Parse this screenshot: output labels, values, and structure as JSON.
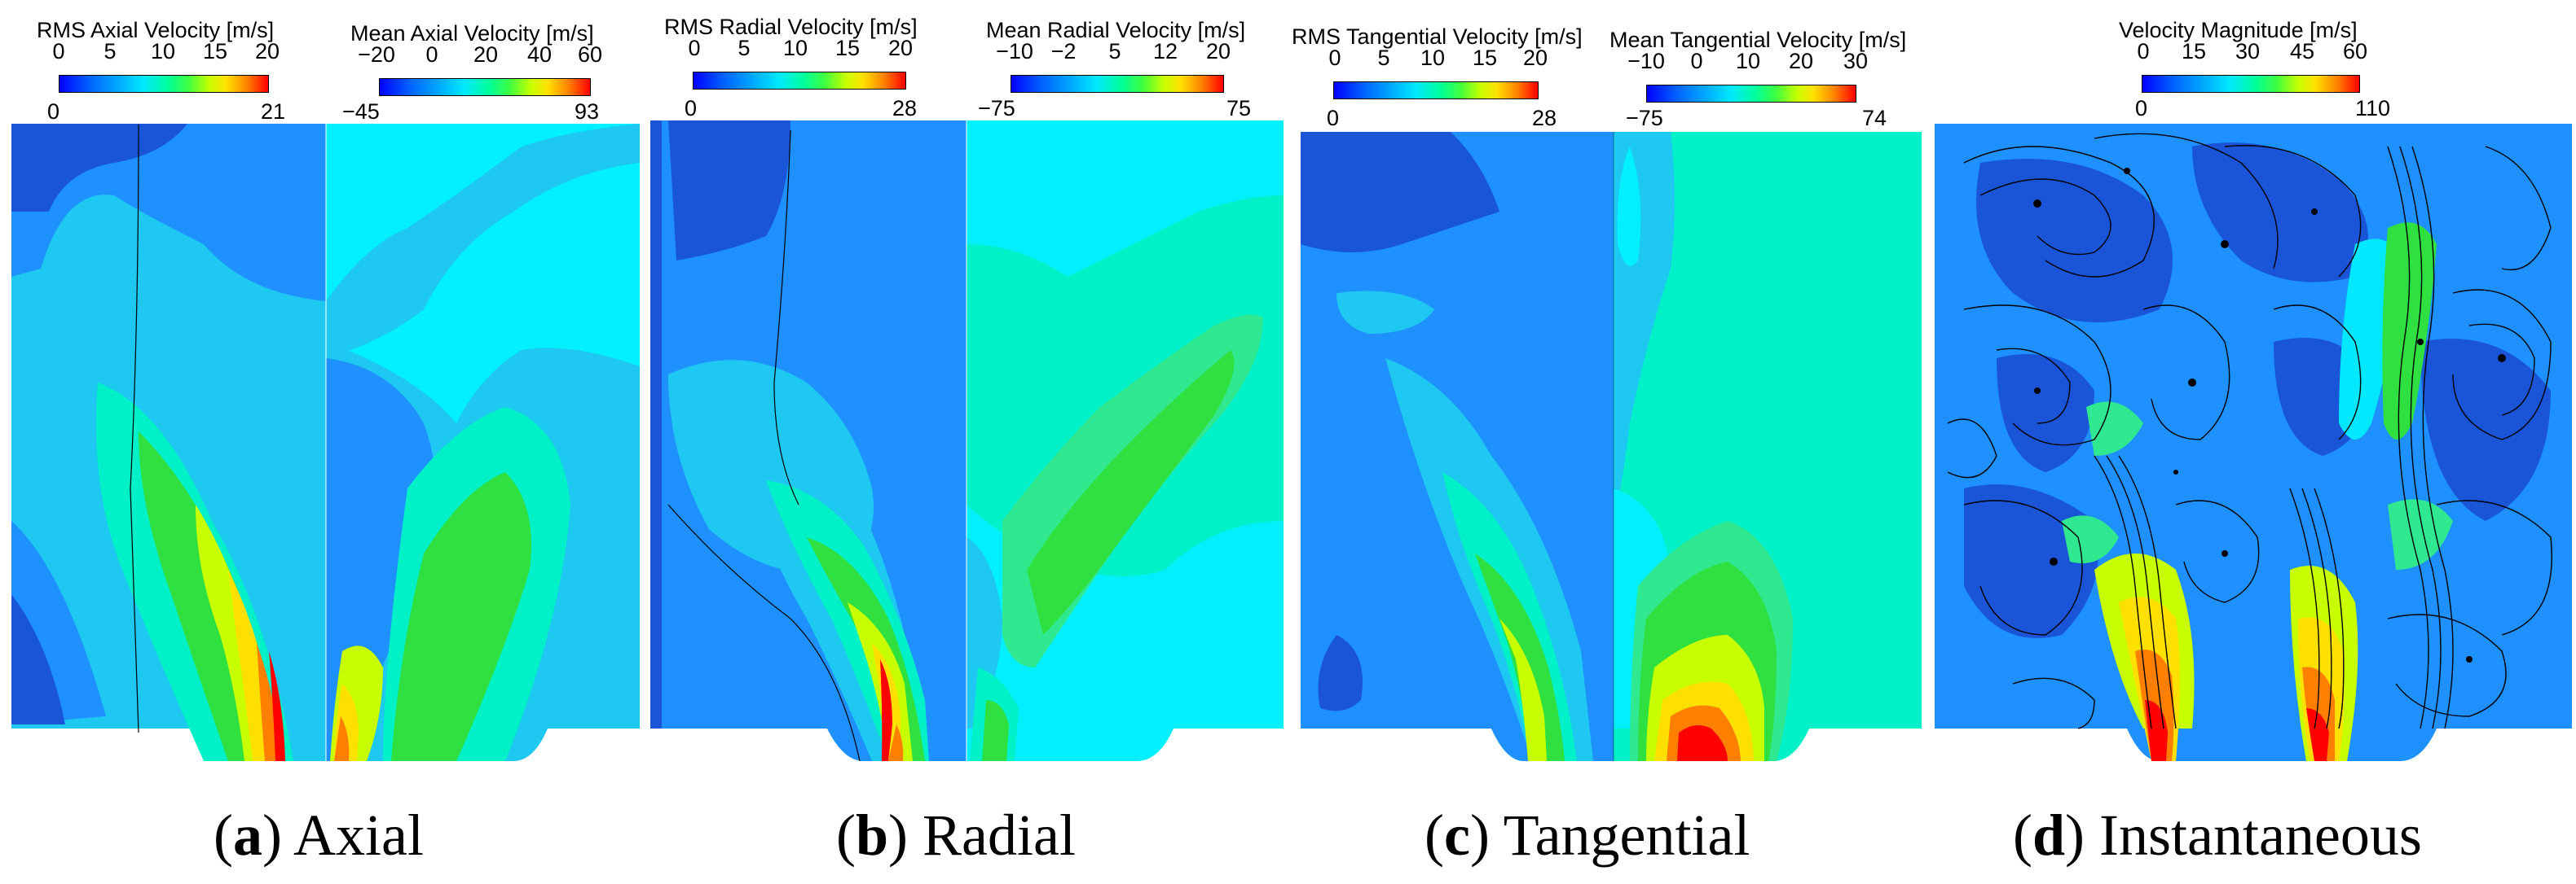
{
  "panels": [
    {
      "caption_letter": "a",
      "caption_text": "Axial",
      "colorbars": [
        {
          "title": "RMS Axial Velocity [m/s]",
          "ticks": [
            "0",
            "5",
            "10",
            "15",
            "20"
          ],
          "min": "0",
          "max": "21"
        },
        {
          "title": "Mean Axial Velocity  [m/s]",
          "ticks": [
            "−20",
            "0",
            "20",
            "40",
            "60"
          ],
          "min": "−45",
          "max": "93"
        }
      ]
    },
    {
      "caption_letter": "b",
      "caption_text": "Radial",
      "colorbars": [
        {
          "title": "RMS Radial Velocity  [m/s]",
          "ticks": [
            "0",
            "5",
            "10",
            "15",
            "20"
          ],
          "min": "0",
          "max": "28"
        },
        {
          "title": "Mean Radial Velocity  [m/s]",
          "ticks": [
            "−10",
            "−2",
            "5",
            "12",
            "20"
          ],
          "min": "−75",
          "max": "75"
        }
      ]
    },
    {
      "caption_letter": "c",
      "caption_text": "Tangential",
      "colorbars": [
        {
          "title": "RMS Tangential Velocity [m/s]",
          "ticks": [
            "0",
            "5",
            "10",
            "15",
            "20"
          ],
          "min": "0",
          "max": "28"
        },
        {
          "title": "Mean Tangential Velocity  [m/s]",
          "ticks": [
            "−10",
            "0",
            "10",
            "20",
            "30"
          ],
          "min": "−75",
          "max": "74"
        }
      ]
    },
    {
      "caption_letter": "d",
      "caption_text": "Instantaneous",
      "colorbars": [
        {
          "title": "Velocity Magnitude [m/s]",
          "ticks": [
            "0",
            "15",
            "30",
            "45",
            "60"
          ],
          "min": "0",
          "max": "110"
        }
      ]
    }
  ],
  "colors": {
    "deep_blue": "#1a55d8",
    "blue": "#1e90ff",
    "light_blue": "#1ec8f0",
    "cyan": "#00f0ff",
    "aqua": "#00f0c8",
    "green_light": "#30e890",
    "green": "#30e040",
    "yellow_green": "#c8ff00",
    "yellow": "#ffe000",
    "orange": "#ff8000",
    "red": "#ff0000"
  }
}
